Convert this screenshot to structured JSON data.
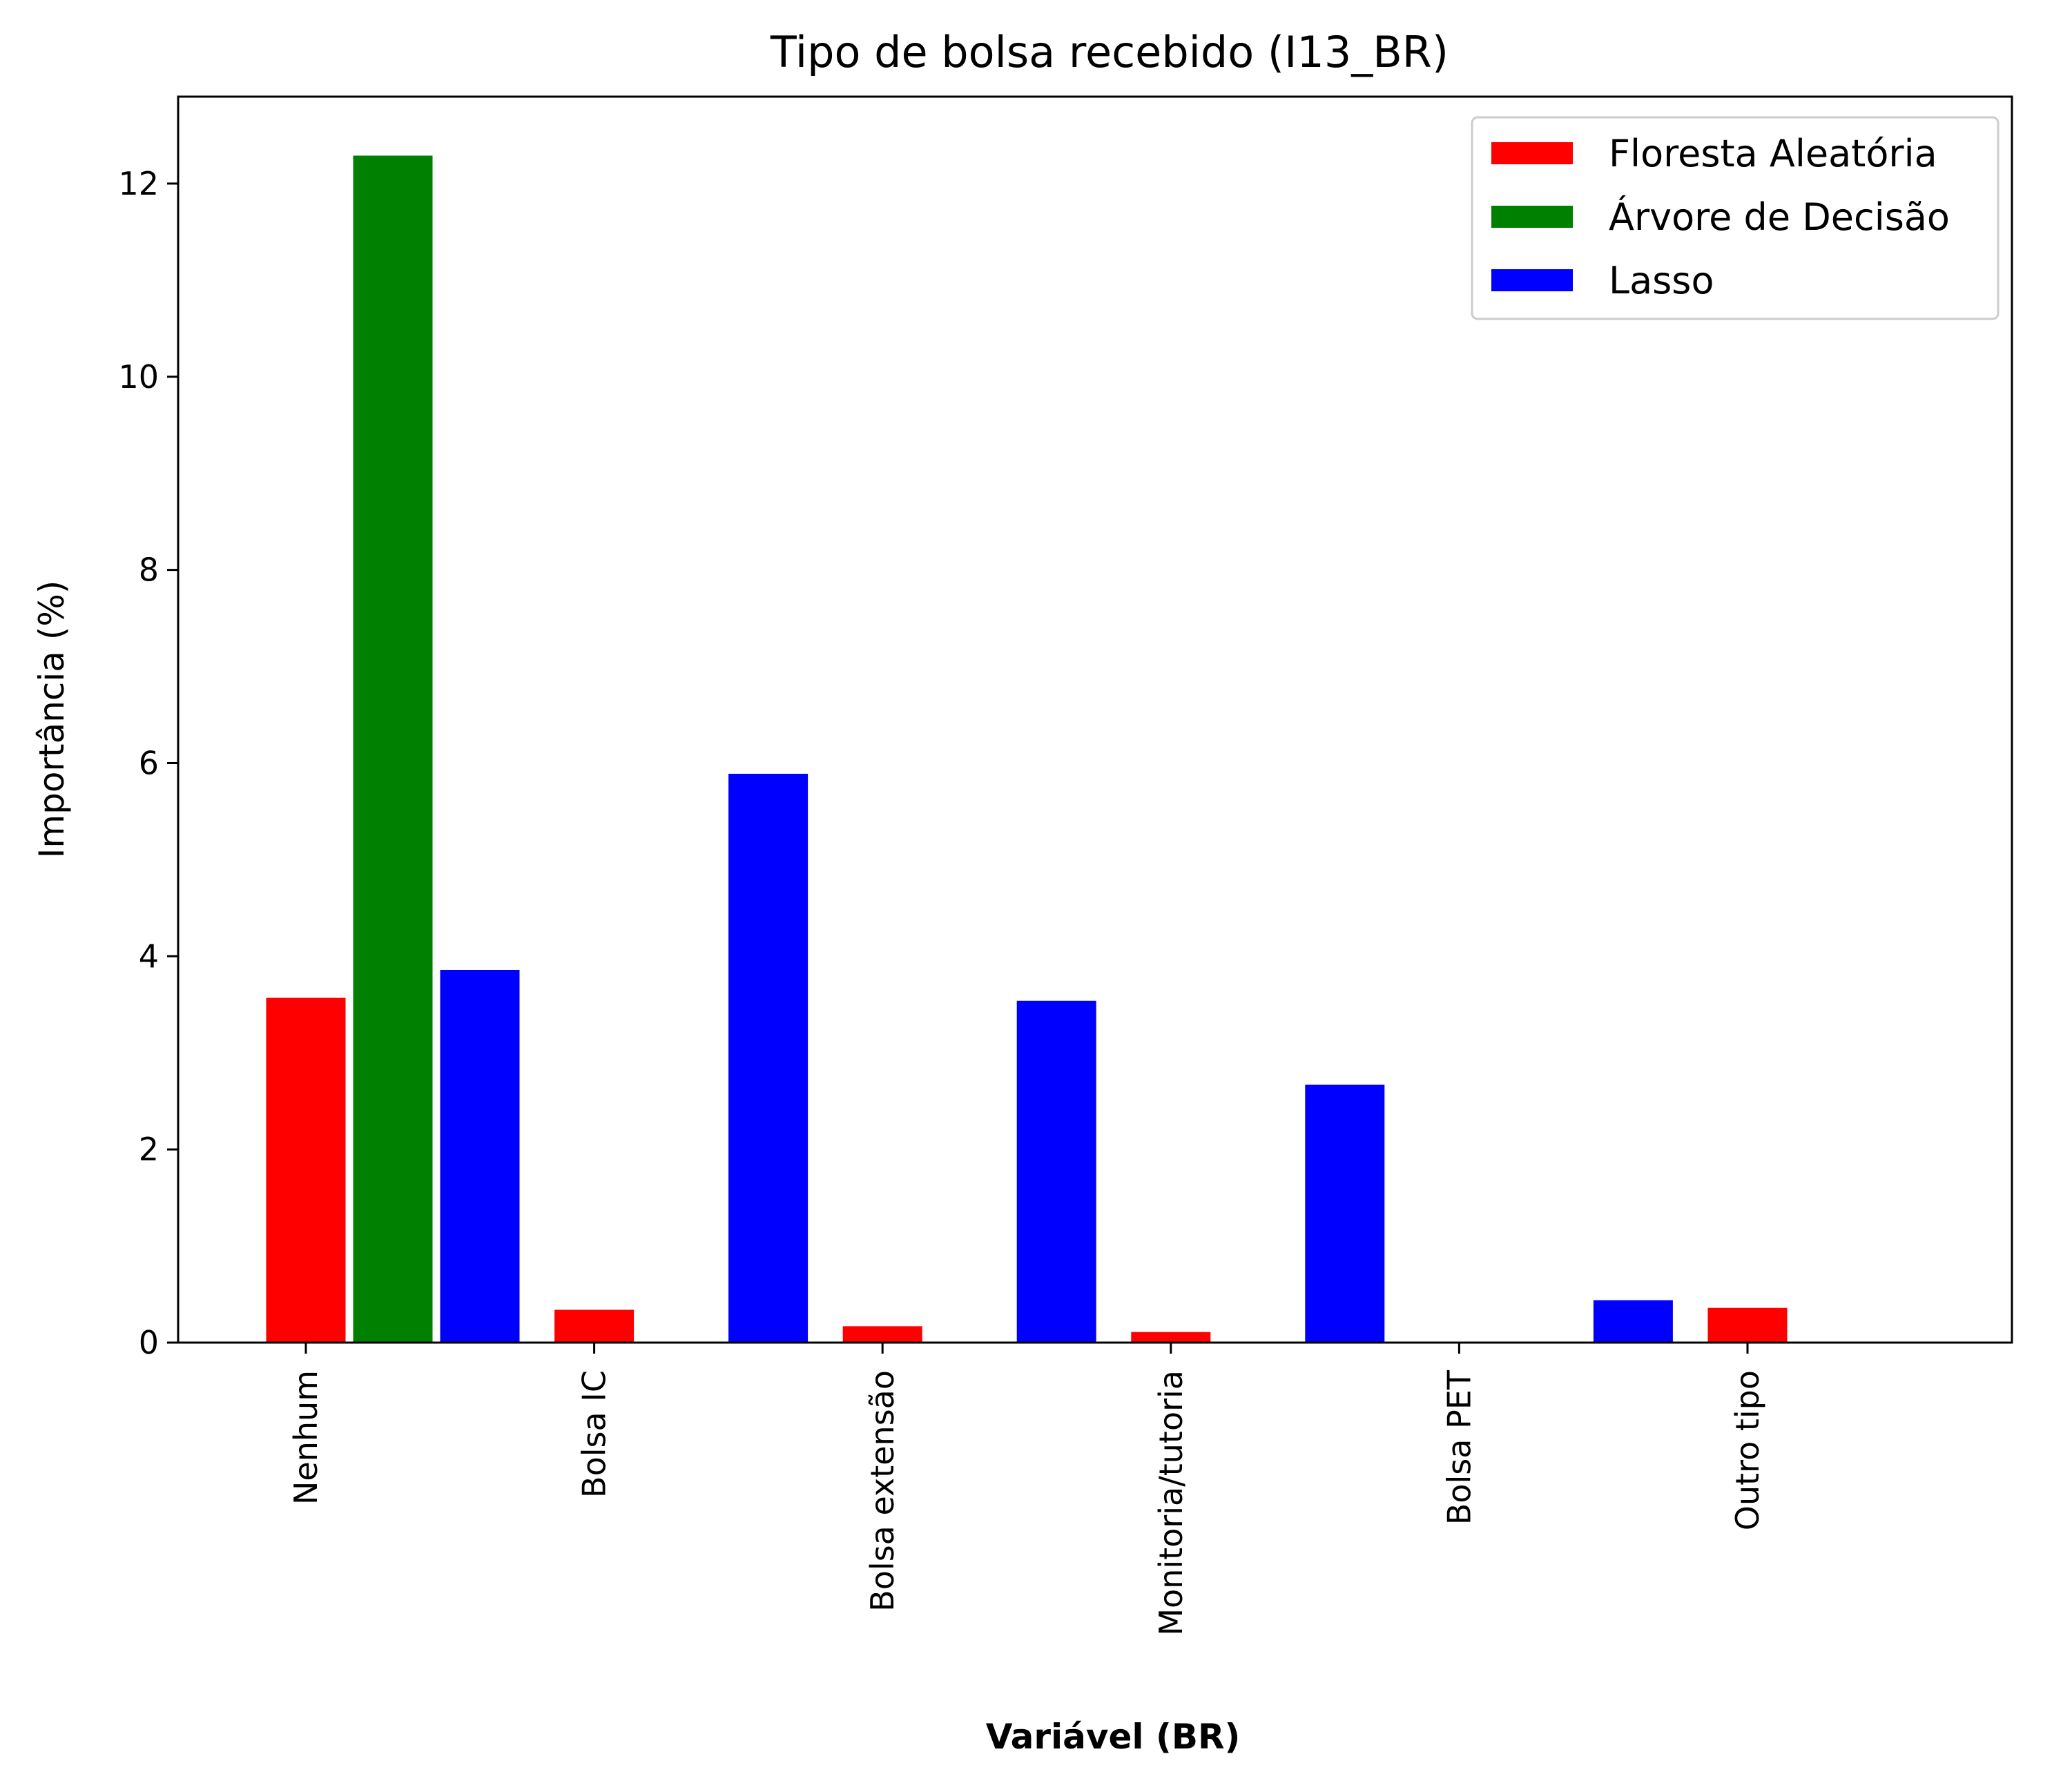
{
  "chart_data": {
    "type": "bar",
    "title": "Tipo de bolsa recebido (I13_BR)",
    "xlabel": "Variável (BR)",
    "ylabel": "Importância (%)",
    "ylim": [
      0,
      12.9
    ],
    "yticks": [
      0,
      2,
      4,
      6,
      8,
      10,
      12
    ],
    "categories": [
      "Nenhum",
      "Bolsa IC",
      "Bolsa extensão",
      "Monitoria/tutoria",
      "Bolsa PET",
      "Outro tipo"
    ],
    "legend_position": "top-right",
    "series": [
      {
        "name": "Floresta Aleatória",
        "color": "#ff0000",
        "values": [
          3.58,
          0.35,
          0.18,
          0.12,
          0.0,
          0.37
        ]
      },
      {
        "name": "Árvore de Decisão",
        "color": "#008000",
        "values": [
          12.3,
          0.0,
          0.0,
          0.0,
          0.0,
          0.0
        ]
      },
      {
        "name": "Lasso",
        "color": "#0000ff",
        "values": [
          3.87,
          5.9,
          3.55,
          2.68,
          0.45,
          0.0
        ]
      }
    ]
  }
}
